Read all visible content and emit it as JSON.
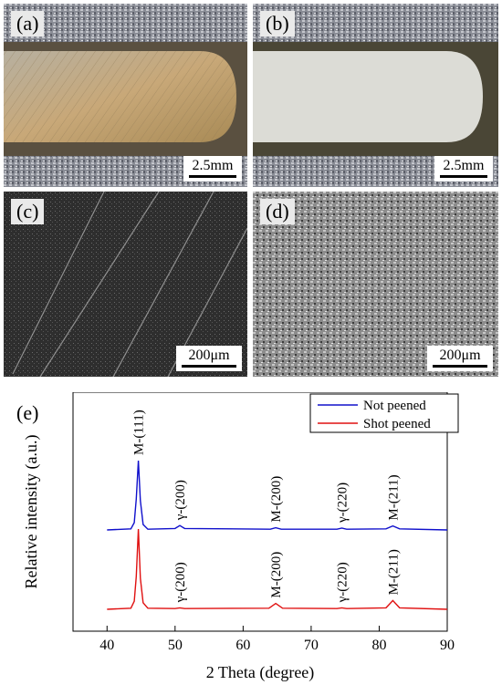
{
  "panels": [
    {
      "label": "(a)",
      "scale": "2.5mm",
      "kind": "photo-unpeened"
    },
    {
      "label": "(b)",
      "scale": "2.5mm",
      "kind": "photo-peened"
    },
    {
      "label": "(c)",
      "scale": "200μm",
      "kind": "sem-unpeened"
    },
    {
      "label": "(d)",
      "scale": "200μm",
      "kind": "sem-peened"
    }
  ],
  "chart_data": {
    "type": "line",
    "panel_label": "(e)",
    "xlabel": "2 Theta (degree)",
    "ylabel": "Relative intensity (a.u.)",
    "xlim": [
      35,
      90
    ],
    "xticks": [
      40,
      50,
      60,
      70,
      80,
      90
    ],
    "legend": "top-right",
    "series": [
      {
        "name": "Not peened",
        "color": "#1010cc",
        "x": [
          40,
          43.5,
          44.0,
          44.3,
          44.6,
          44.9,
          45.3,
          46,
          50.0,
          50.7,
          51.4,
          64,
          64.8,
          65.6,
          73.8,
          74.5,
          75.2,
          81.0,
          82.0,
          83.0,
          90
        ],
        "y": [
          0,
          0.3,
          2.0,
          8.5,
          19.0,
          8.0,
          1.5,
          0.2,
          0.4,
          1.2,
          0.4,
          0.2,
          0.6,
          0.2,
          0.2,
          0.5,
          0.2,
          0.3,
          1.1,
          0.3,
          0
        ]
      },
      {
        "name": "Shot peened",
        "color": "#e01010",
        "x": [
          40,
          43.5,
          44.0,
          44.3,
          44.6,
          44.9,
          45.3,
          46,
          50.0,
          50.7,
          51.4,
          63.8,
          64.8,
          65.8,
          73.8,
          74.5,
          75.2,
          81.0,
          82.0,
          83.0,
          90
        ],
        "y": [
          0,
          0.3,
          2.2,
          9.0,
          22.0,
          8.5,
          1.8,
          0.3,
          0.2,
          0.4,
          0.2,
          0.3,
          1.6,
          0.3,
          0.2,
          0.4,
          0.2,
          0.4,
          2.4,
          0.4,
          0
        ]
      }
    ],
    "annotations": [
      {
        "text": "M-(111)",
        "x": 44.6,
        "series": 0
      },
      {
        "text": "γ-(200)",
        "x": 50.7,
        "series": 0
      },
      {
        "text": "M-(200)",
        "x": 64.8,
        "series": 0
      },
      {
        "text": "γ-(220)",
        "x": 74.5,
        "series": 0
      },
      {
        "text": "M-(211)",
        "x": 82.0,
        "series": 0
      },
      {
        "text": "γ-(200)",
        "x": 50.7,
        "series": 1
      },
      {
        "text": "M-(200)",
        "x": 64.8,
        "series": 1
      },
      {
        "text": "γ-(220)",
        "x": 74.5,
        "series": 1
      },
      {
        "text": "M-(211)",
        "x": 82.0,
        "series": 1
      }
    ]
  }
}
